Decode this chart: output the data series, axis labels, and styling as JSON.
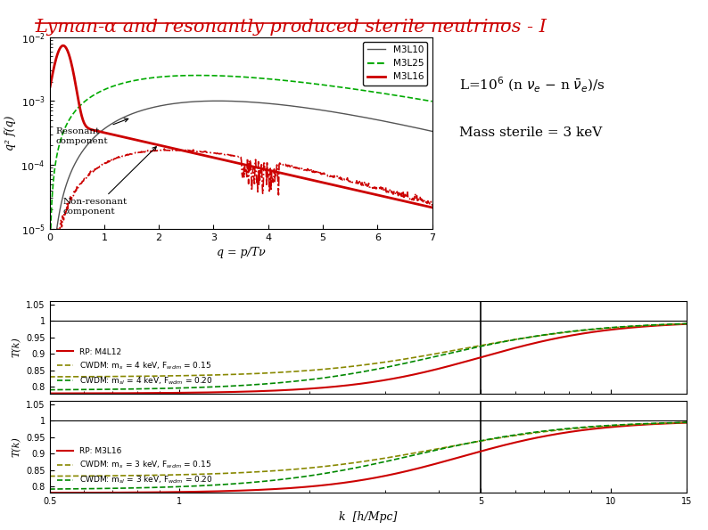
{
  "title": "Lyman-α and resonantly produced sterile neutrinos - I",
  "title_color": "#cc0000",
  "title_fontsize": 15,
  "background_color": "#ffffff",
  "top_plot": {
    "xlabel": "q = p/Tν",
    "ylabel": "q² f(q)",
    "xlim": [
      0,
      7
    ],
    "ylim": [
      1e-05,
      0.01
    ]
  },
  "annotation_L": "L=10$^6$ (n $\\nu_e$ $-$ n $\\bar{\\nu}_e$)/s",
  "annotation_mass": "Mass sterile = 3 keV",
  "bottom_plot1": {
    "ylabel": "T(k)",
    "xlim": [
      0.5,
      15
    ],
    "ylim": [
      0.78,
      1.06
    ],
    "yticks": [
      0.8,
      0.85,
      0.9,
      0.95,
      1.0,
      1.05
    ],
    "vline_x": 5.0,
    "legend_entries": [
      {
        "label": "RP: M4L12",
        "color": "#cc0000",
        "ls": "-",
        "lw": 1.5
      },
      {
        "label": "CWDM: m$_s$ = 4 keV, F$_{wdm}$ = 0.15",
        "color": "#888800",
        "ls": "--",
        "lw": 1.2
      },
      {
        "label": "CWDM: m$_{sl}$ = 4 keV, F$_{wdm}$ = 0.20",
        "color": "#008800",
        "ls": "--",
        "lw": 1.2
      }
    ]
  },
  "bottom_plot2": {
    "xlabel": "k  [h/Mpc]",
    "ylabel": "T(k)",
    "xlim": [
      0.5,
      15
    ],
    "ylim": [
      0.78,
      1.06
    ],
    "yticks": [
      0.8,
      0.85,
      0.9,
      0.95,
      1.0,
      1.05
    ],
    "vline_x": 5.0,
    "legend_entries": [
      {
        "label": "RP: M3L16",
        "color": "#cc0000",
        "ls": "-",
        "lw": 1.5
      },
      {
        "label": "CWDM: m$_s$ = 3 keV, F$_{wdm}$ = 0.15",
        "color": "#888800",
        "ls": "--",
        "lw": 1.2
      },
      {
        "label": "CWDM: m$_{sl}$ = 3 keV, F$_{wdm}$ = 0.20",
        "color": "#008800",
        "ls": "--",
        "lw": 1.2
      }
    ]
  }
}
